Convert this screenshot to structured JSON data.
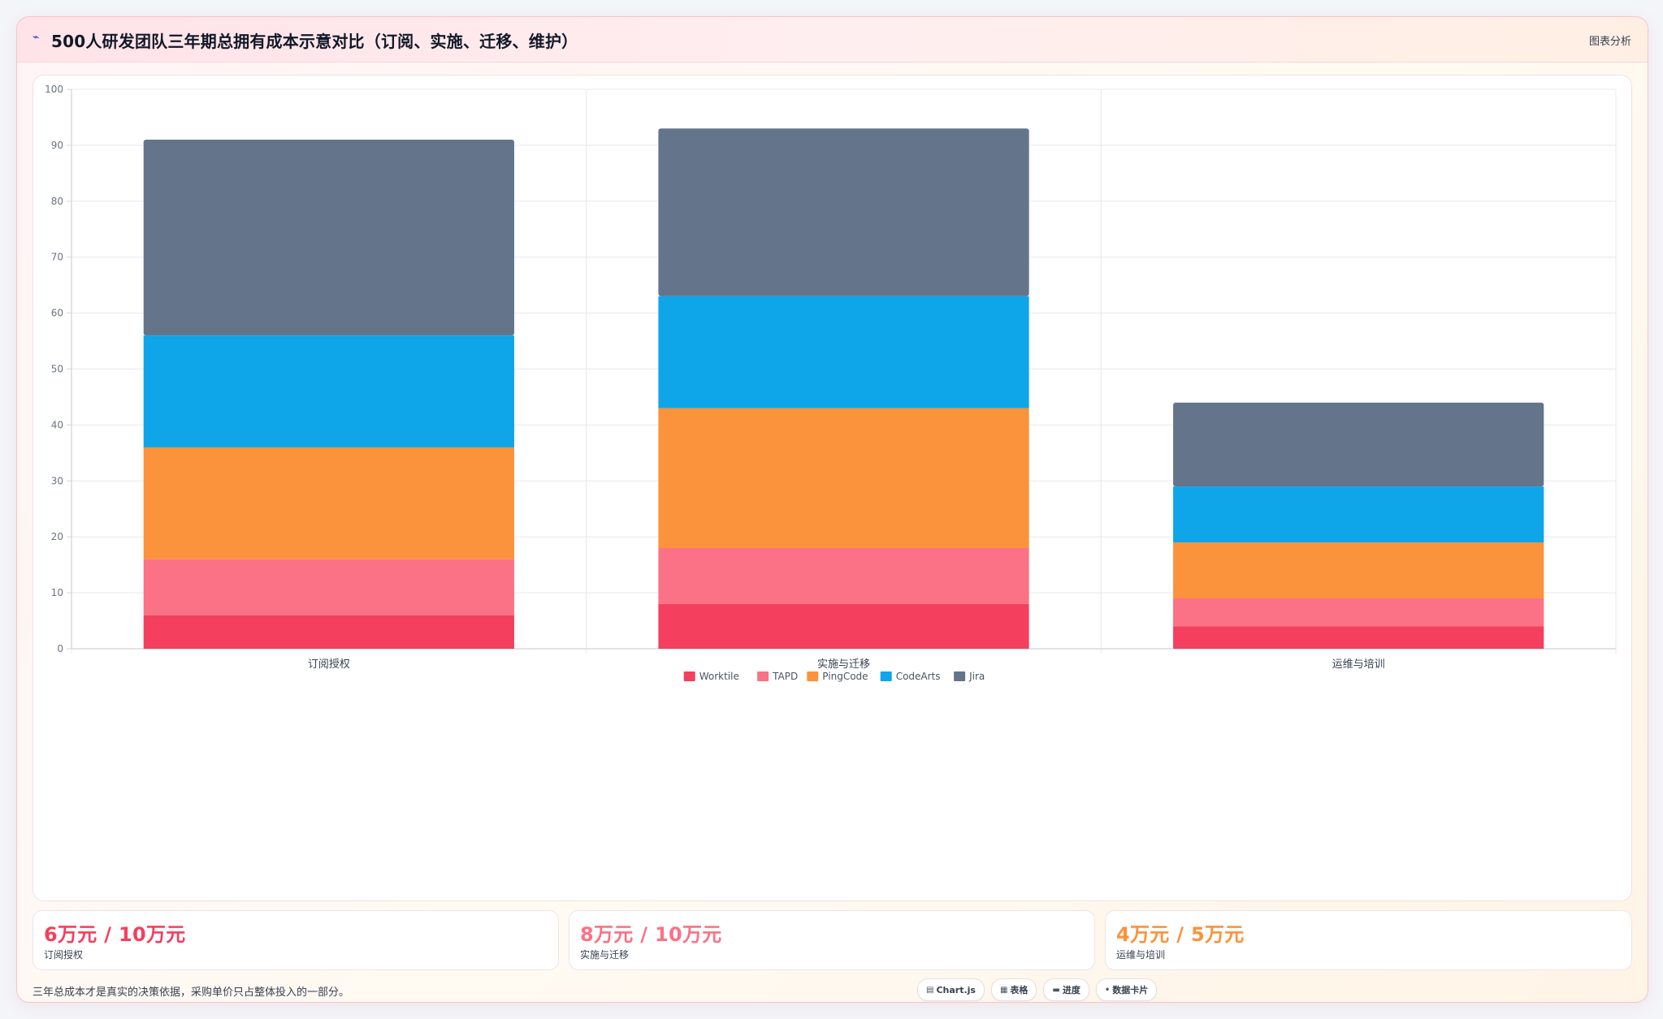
{
  "header": {
    "icon": "chart-line-icon",
    "title": "500人研发团队三年期总拥有成本示意对比（订阅、实施、迁移、维护）",
    "action_label": "图表分析"
  },
  "chart_data": {
    "type": "bar",
    "stacked": true,
    "categories": [
      "订阅授权",
      "实施与迁移",
      "运维与培训"
    ],
    "series": [
      {
        "name": "Worktile",
        "color": "#f43f5e",
        "values": [
          6,
          8,
          4
        ]
      },
      {
        "name": "TAPD",
        "color": "#fb7185",
        "values": [
          10,
          10,
          5
        ]
      },
      {
        "name": "PingCode",
        "color": "#fb923c",
        "values": [
          20,
          25,
          10
        ]
      },
      {
        "name": "CodeArts",
        "color": "#0ea5e9",
        "values": [
          20,
          20,
          10
        ]
      },
      {
        "name": "Jira",
        "color": "#64748b",
        "values": [
          35,
          30,
          15
        ]
      }
    ],
    "ylim": [
      0,
      100
    ],
    "yticks": [
      0,
      10,
      20,
      30,
      40,
      50,
      60,
      70,
      80,
      90,
      100
    ],
    "grid": true,
    "legend_position": "bottom",
    "title": "",
    "xlabel": "",
    "ylabel": ""
  },
  "stats": [
    {
      "value": "6万元 / 10万元",
      "label": "订阅授权",
      "color": "#f43f5e"
    },
    {
      "value": "8万元 / 10万元",
      "label": "实施与迁移",
      "color": "#fb7185"
    },
    {
      "value": "4万元 / 5万元",
      "label": "运维与培训",
      "color": "#fb923c"
    }
  ],
  "footnote": "三年总成本才是真实的决策依据，采购单价只占整体投入的一部分。",
  "pills": [
    {
      "icon": "chart-icon",
      "glyph": "▤",
      "label": "Chart.js"
    },
    {
      "icon": "table-icon",
      "glyph": "▦",
      "label": "表格"
    },
    {
      "icon": "progress-icon",
      "glyph": "▬",
      "label": "进度"
    },
    {
      "icon": "card-icon",
      "glyph": "•",
      "label": "数据卡片"
    }
  ]
}
